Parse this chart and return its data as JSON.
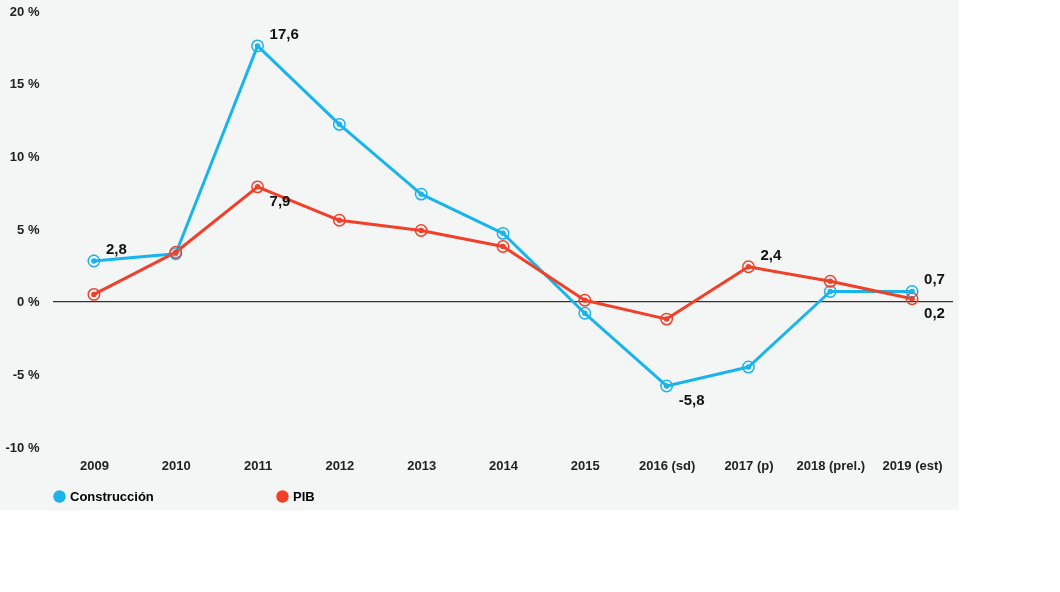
{
  "chart_data": {
    "type": "line",
    "categories": [
      "2009",
      "2010",
      "2011",
      "2012",
      "2013",
      "2014",
      "2015",
      "2016 (sd)",
      "2017 (p)",
      "2018 (prel.)",
      "2019 (est)"
    ],
    "series": [
      {
        "name": "Construcción",
        "color": "#1ab4ec",
        "values": [
          2.8,
          3.3,
          17.6,
          12.2,
          7.4,
          4.7,
          -0.8,
          -5.8,
          -4.5,
          0.7,
          0.7
        ],
        "value_labels": [
          "2,8",
          null,
          "17,6",
          null,
          null,
          null,
          null,
          "-5,8",
          null,
          null,
          "0,7"
        ]
      },
      {
        "name": "PIB",
        "color": "#f0402a",
        "values": [
          0.5,
          3.4,
          7.9,
          5.6,
          4.9,
          3.8,
          0.1,
          -1.2,
          2.4,
          1.4,
          0.2
        ],
        "value_labels": [
          null,
          null,
          "7,9",
          null,
          null,
          null,
          null,
          null,
          "2,4",
          null,
          "0,2"
        ]
      }
    ],
    "ylim": [
      -10,
      20
    ],
    "yticks": [
      {
        "value": -10,
        "label": "-10 %"
      },
      {
        "value": -5,
        "label": "-5 %"
      },
      {
        "value": 0,
        "label": "0 %"
      },
      {
        "value": 5,
        "label": "5 %"
      },
      {
        "value": 10,
        "label": "10 %"
      },
      {
        "value": 15,
        "label": "15 %"
      },
      {
        "value": 20,
        "label": "20 %"
      }
    ],
    "ref_lines": [
      {
        "axis": "y",
        "value": 0,
        "color": "#333333"
      }
    ],
    "grid": false,
    "legend": "bottom",
    "marker": "circle",
    "line_style": "solid"
  }
}
